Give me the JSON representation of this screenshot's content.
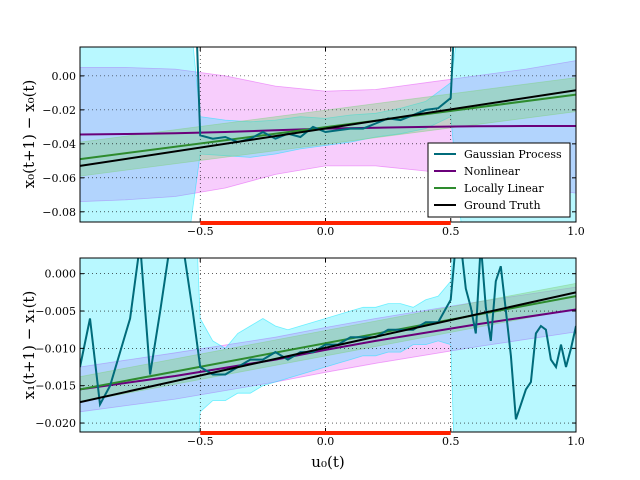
{
  "colors": {
    "gp": "#006b7a",
    "gp_band": "#00e5ff",
    "nonlinear": "#6a007a",
    "nonlinear_band": "#e34cf5",
    "locally_linear": "#2e8b2e",
    "locally_linear_band": "#7fd27f",
    "ground_truth": "#000000",
    "training_range": "#ff2200",
    "grid": "#000000"
  },
  "chart_data": [
    {
      "type": "line",
      "ylabel": "x₀(t+1) − x₀(t)",
      "xlim": [
        -0.98,
        1.0
      ],
      "ylim": [
        -0.086,
        0.017
      ],
      "xticks": [
        -0.5,
        0.0,
        0.5,
        1.0
      ],
      "xtick_labels": [
        "−0.5",
        "0.0",
        "0.5",
        "1.0"
      ],
      "yticks": [
        0.0,
        -0.02,
        -0.04,
        -0.06,
        -0.08
      ],
      "ytick_labels": [
        "0.00",
        "−0.02",
        "−0.04",
        "−0.06",
        "−0.08"
      ],
      "grid": true,
      "legend_position": "lower-right",
      "training_range": [
        -0.5,
        0.5
      ],
      "series": [
        {
          "name": "Gaussian Process",
          "key": "gp",
          "x": [
            -0.52,
            -0.5,
            -0.45,
            -0.4,
            -0.35,
            -0.3,
            -0.25,
            -0.2,
            -0.15,
            -0.1,
            -0.05,
            0.0,
            0.05,
            0.1,
            0.15,
            0.2,
            0.25,
            0.3,
            0.35,
            0.4,
            0.45,
            0.5,
            0.52
          ],
          "y": [
            0.05,
            -0.035,
            -0.037,
            -0.036,
            -0.039,
            -0.037,
            -0.033,
            -0.037,
            -0.034,
            -0.036,
            -0.03,
            -0.033,
            -0.032,
            -0.031,
            -0.031,
            -0.028,
            -0.025,
            -0.026,
            -0.023,
            -0.02,
            -0.019,
            -0.013,
            0.05
          ],
          "band_x": [
            -0.98,
            -0.9,
            -0.8,
            -0.7,
            -0.6,
            -0.55,
            -0.5,
            -0.4,
            -0.3,
            -0.2,
            -0.1,
            0.0,
            0.1,
            0.2,
            0.3,
            0.4,
            0.5,
            0.55,
            0.6,
            0.7,
            0.8,
            0.9,
            1.0
          ],
          "band_upper": [
            0.05,
            0.05,
            0.05,
            0.05,
            0.05,
            0.05,
            -0.024,
            -0.026,
            -0.027,
            -0.026,
            -0.024,
            -0.025,
            -0.023,
            -0.022,
            -0.019,
            -0.015,
            -0.004,
            0.05,
            0.05,
            0.05,
            0.05,
            0.05,
            0.05
          ],
          "band_lower": [
            -0.1,
            -0.1,
            -0.1,
            -0.1,
            -0.1,
            -0.1,
            -0.046,
            -0.047,
            -0.048,
            -0.046,
            -0.043,
            -0.041,
            -0.039,
            -0.036,
            -0.034,
            -0.031,
            -0.024,
            -0.1,
            -0.1,
            -0.1,
            -0.1,
            -0.1,
            -0.1
          ]
        },
        {
          "name": "Nonlinear",
          "key": "nonlinear",
          "x": [
            -0.98,
            -0.8,
            -0.6,
            -0.4,
            -0.2,
            0.0,
            0.2,
            0.4,
            0.6,
            0.8,
            1.0
          ],
          "y": [
            -0.0345,
            -0.0342,
            -0.0338,
            -0.033,
            -0.032,
            -0.031,
            -0.0305,
            -0.03,
            -0.0297,
            -0.0295,
            -0.0295
          ],
          "band_upper": [
            0.005,
            0.005,
            0.004,
            0.0,
            -0.006,
            -0.009,
            -0.008,
            -0.004,
            0.0,
            0.004,
            0.009
          ],
          "band_lower": [
            -0.074,
            -0.073,
            -0.071,
            -0.066,
            -0.058,
            -0.053,
            -0.053,
            -0.056,
            -0.061,
            -0.065,
            -0.069
          ]
        },
        {
          "name": "Locally Linear",
          "key": "locally_linear",
          "x": [
            -0.98,
            1.0
          ],
          "y": [
            -0.049,
            -0.011
          ],
          "band_upper": [
            -0.039,
            -0.001
          ],
          "band_lower": [
            -0.059,
            -0.021
          ]
        },
        {
          "name": "Ground Truth",
          "key": "ground_truth",
          "x": [
            -0.98,
            1.0
          ],
          "y": [
            -0.053,
            -0.0085
          ]
        }
      ]
    },
    {
      "type": "line",
      "xlabel": "u₀(t)",
      "ylabel": "x₁(t+1) − x₁(t)",
      "xlim": [
        -0.98,
        1.0
      ],
      "ylim": [
        -0.0212,
        0.0021
      ],
      "xticks": [
        -0.5,
        0.0,
        0.5,
        1.0
      ],
      "xtick_labels": [
        "−0.5",
        "0.0",
        "0.5",
        "1.0"
      ],
      "yticks": [
        0.0,
        -0.005,
        -0.01,
        -0.015,
        -0.02
      ],
      "ytick_labels": [
        "0.000",
        "−0.005",
        "−0.010",
        "−0.015",
        "−0.020"
      ],
      "grid": true,
      "training_range": [
        -0.5,
        0.5
      ],
      "series": [
        {
          "name": "Gaussian Process",
          "key": "gp",
          "x": [
            -0.98,
            -0.94,
            -0.9,
            -0.86,
            -0.78,
            -0.74,
            -0.7,
            -0.66,
            -0.62,
            -0.57,
            -0.53,
            -0.5,
            -0.45,
            -0.4,
            -0.35,
            -0.3,
            -0.25,
            -0.2,
            -0.15,
            -0.1,
            -0.05,
            0.0,
            0.05,
            0.1,
            0.15,
            0.2,
            0.25,
            0.3,
            0.35,
            0.4,
            0.45,
            0.5,
            0.52,
            0.54,
            0.56,
            0.58,
            0.6,
            0.62,
            0.64,
            0.66,
            0.68,
            0.7,
            0.72,
            0.74,
            0.76,
            0.78,
            0.8,
            0.82,
            0.84,
            0.86,
            0.88,
            0.9,
            0.92,
            0.94,
            0.96,
            0.98,
            1.0
          ],
          "y": [
            -0.0125,
            -0.006,
            -0.0175,
            -0.015,
            -0.006,
            0.004,
            -0.0135,
            -0.005,
            0.004,
            0.004,
            -0.005,
            -0.0125,
            -0.0135,
            -0.0135,
            -0.0125,
            -0.0115,
            -0.0115,
            -0.0105,
            -0.0115,
            -0.0105,
            -0.0105,
            -0.0095,
            -0.0095,
            -0.0085,
            -0.0085,
            -0.0085,
            -0.0075,
            -0.0075,
            -0.0075,
            -0.0065,
            -0.0065,
            -0.0035,
            0.004,
            0.004,
            -0.002,
            -0.0045,
            -0.008,
            0.004,
            -0.0045,
            -0.009,
            -0.001,
            0.001,
            -0.005,
            -0.011,
            -0.0195,
            -0.0175,
            -0.0155,
            -0.0145,
            -0.008,
            -0.007,
            -0.0075,
            -0.0115,
            -0.0125,
            -0.0095,
            -0.0125,
            -0.01,
            -0.007
          ],
          "band_x": [
            -0.98,
            -0.6,
            -0.52,
            -0.5,
            -0.45,
            -0.4,
            -0.35,
            -0.3,
            -0.25,
            -0.2,
            -0.15,
            -0.1,
            -0.05,
            0.0,
            0.05,
            0.1,
            0.15,
            0.2,
            0.25,
            0.3,
            0.35,
            0.4,
            0.45,
            0.5,
            0.52,
            0.6,
            1.0
          ],
          "band_upper": [
            0.01,
            0.01,
            0.01,
            -0.006,
            -0.009,
            -0.01,
            -0.008,
            -0.007,
            -0.006,
            -0.007,
            -0.0075,
            -0.007,
            -0.0065,
            -0.006,
            -0.0055,
            -0.005,
            -0.0045,
            -0.0045,
            -0.004,
            -0.004,
            -0.0045,
            -0.0035,
            -0.003,
            -0.001,
            0.01,
            0.01,
            0.01
          ],
          "band_lower": [
            -0.03,
            -0.03,
            -0.03,
            -0.0185,
            -0.017,
            -0.017,
            -0.016,
            -0.016,
            -0.015,
            -0.0145,
            -0.014,
            -0.0135,
            -0.013,
            -0.0125,
            -0.012,
            -0.0115,
            -0.011,
            -0.011,
            -0.0105,
            -0.0105,
            -0.0095,
            -0.0095,
            -0.009,
            -0.0095,
            -0.03,
            -0.03,
            -0.03
          ]
        },
        {
          "name": "Nonlinear",
          "key": "nonlinear",
          "x": [
            -0.98,
            -0.6,
            -0.2,
            0.0,
            0.2,
            0.6,
            1.0
          ],
          "y": [
            -0.0155,
            -0.0137,
            -0.0115,
            -0.0102,
            -0.009,
            -0.0068,
            -0.0048
          ],
          "band_upper": [
            -0.0125,
            -0.0106,
            -0.0085,
            -0.0072,
            -0.006,
            -0.0038,
            -0.0018
          ],
          "band_lower": [
            -0.0185,
            -0.0168,
            -0.0145,
            -0.0132,
            -0.012,
            -0.0098,
            -0.0078
          ]
        },
        {
          "name": "Locally Linear",
          "key": "locally_linear",
          "x": [
            -0.98,
            1.0
          ],
          "y": [
            -0.0155,
            -0.003
          ],
          "band_upper": [
            -0.0138,
            -0.0013
          ],
          "band_lower": [
            -0.0172,
            -0.0047
          ]
        },
        {
          "name": "Ground Truth",
          "key": "ground_truth",
          "x": [
            -0.98,
            1.0
          ],
          "y": [
            -0.0172,
            -0.0025
          ]
        }
      ]
    }
  ]
}
